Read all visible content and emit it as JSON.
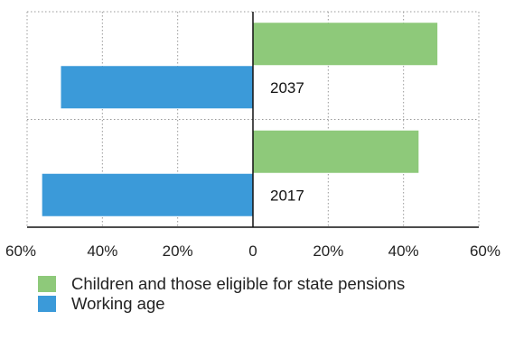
{
  "chart_data": {
    "type": "bar",
    "orientation": "horizontal-butterfly",
    "categories": [
      "2037",
      "2017"
    ],
    "series": [
      {
        "name": "Children and those eligible for state pensions",
        "side": "right",
        "color": "#8ec97a",
        "values": [
          49,
          44
        ]
      },
      {
        "name": "Working age",
        "side": "left",
        "color": "#3b9ad9",
        "values": [
          51,
          56
        ]
      }
    ],
    "xlim": [
      -60,
      60
    ],
    "ticks": [
      {
        "value": -60,
        "label": "60%"
      },
      {
        "value": -40,
        "label": "40%"
      },
      {
        "value": -20,
        "label": "20%"
      },
      {
        "value": 0,
        "label": "0"
      },
      {
        "value": 20,
        "label": "20%"
      },
      {
        "value": 40,
        "label": "40%"
      },
      {
        "value": 60,
        "label": "60%"
      }
    ],
    "grid": true,
    "legend_position": "bottom-left",
    "title": "",
    "xlabel": "",
    "ylabel": ""
  }
}
